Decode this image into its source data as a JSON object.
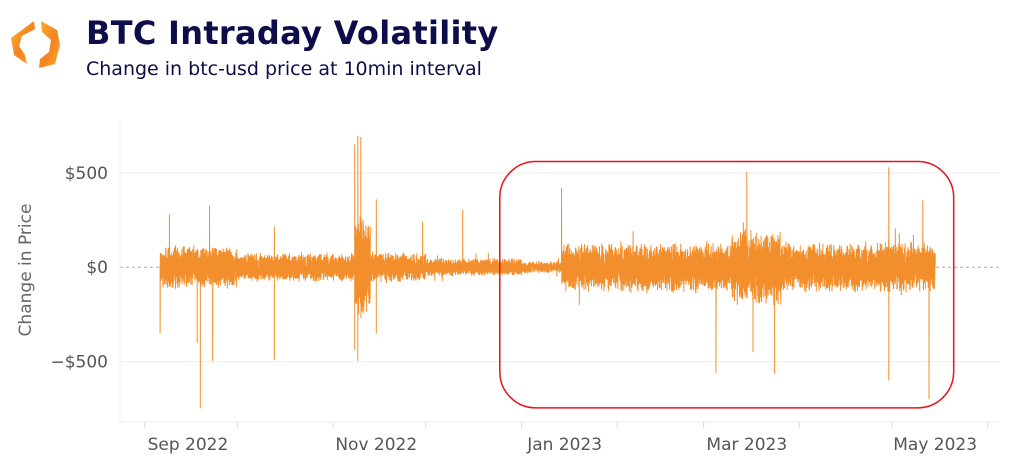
{
  "header": {
    "title": "BTC Intraday Volatility",
    "subtitle": "Change in btc-usd price at 10min interval",
    "logo_icon": "orange-hexagon-brackets-logo"
  },
  "chart_data": {
    "type": "line",
    "title": "BTC Intraday Volatility",
    "subtitle": "Change in btc-usd price at 10min interval",
    "xlabel": "",
    "ylabel": "Change in Price",
    "x_range": [
      "2022-08-24",
      "2023-06-05"
    ],
    "ylim": [
      -820,
      780
    ],
    "y_ticks": [
      500,
      0,
      -500
    ],
    "y_tick_labels": [
      "$500",
      "$0",
      "−$500"
    ],
    "x_ticks": [
      "2022-09-01",
      "2022-11-01",
      "2023-01-01",
      "2023-03-01",
      "2023-05-01"
    ],
    "x_tick_labels": [
      "Sep 2022",
      "Nov 2022",
      "Jan 2023",
      "Mar 2023",
      "May 2023"
    ],
    "x_minor_ticks": [
      "2022-10-01",
      "2022-12-01",
      "2023-02-01",
      "2023-04-01",
      "2023-06-01"
    ],
    "grid": true,
    "zero_line": "dashed",
    "line_color": "#f28f2c",
    "data_start": "2022-09-06",
    "data_end": "2023-05-15",
    "interval": "10min",
    "typical_range_by_period": [
      {
        "from": "2022-09-06",
        "to": "2022-09-30",
        "amplitude": 120
      },
      {
        "from": "2022-10-01",
        "to": "2022-11-07",
        "amplitude": 80
      },
      {
        "from": "2022-11-08",
        "to": "2022-11-12",
        "amplitude": 300
      },
      {
        "from": "2022-11-13",
        "to": "2022-11-30",
        "amplitude": 85
      },
      {
        "from": "2022-12-01",
        "to": "2022-12-31",
        "amplitude": 50
      },
      {
        "from": "2023-01-01",
        "to": "2023-01-13",
        "amplitude": 35
      },
      {
        "from": "2023-01-14",
        "to": "2023-03-09",
        "amplitude": 140
      },
      {
        "from": "2023-03-10",
        "to": "2023-03-25",
        "amplitude": 210
      },
      {
        "from": "2023-03-26",
        "to": "2023-05-15",
        "amplitude": 140
      }
    ],
    "extremes": [
      {
        "date": "2022-09-06",
        "value": -350
      },
      {
        "date": "2022-09-09",
        "value": 280
      },
      {
        "date": "2022-09-19",
        "value": -747
      },
      {
        "date": "2022-09-18",
        "value": -400
      },
      {
        "date": "2022-09-22",
        "value": 326
      },
      {
        "date": "2022-09-23",
        "value": -495
      },
      {
        "date": "2022-10-13",
        "value": 215
      },
      {
        "date": "2022-10-13",
        "value": -490
      },
      {
        "date": "2022-11-08",
        "value": 650
      },
      {
        "date": "2022-11-08",
        "value": -440
      },
      {
        "date": "2022-11-09",
        "value": 695
      },
      {
        "date": "2022-11-09",
        "value": -495
      },
      {
        "date": "2022-11-10",
        "value": 690
      },
      {
        "date": "2022-11-15",
        "value": 360
      },
      {
        "date": "2022-11-15",
        "value": -350
      },
      {
        "date": "2022-11-30",
        "value": 240
      },
      {
        "date": "2022-12-13",
        "value": 305
      },
      {
        "date": "2023-01-14",
        "value": 420
      },
      {
        "date": "2023-03-05",
        "value": -560
      },
      {
        "date": "2023-03-15",
        "value": 505
      },
      {
        "date": "2023-03-17",
        "value": -450
      },
      {
        "date": "2023-03-24",
        "value": -565
      },
      {
        "date": "2023-04-30",
        "value": 530
      },
      {
        "date": "2023-04-30",
        "value": -600
      },
      {
        "date": "2023-05-11",
        "value": 355
      },
      {
        "date": "2023-05-13",
        "value": -700
      }
    ],
    "annotation_box": {
      "x0": "2022-12-25",
      "x1": "2023-05-21",
      "y0": -745,
      "y1": 560,
      "color": "#e8141b",
      "shape": "rounded-rectangle"
    }
  }
}
